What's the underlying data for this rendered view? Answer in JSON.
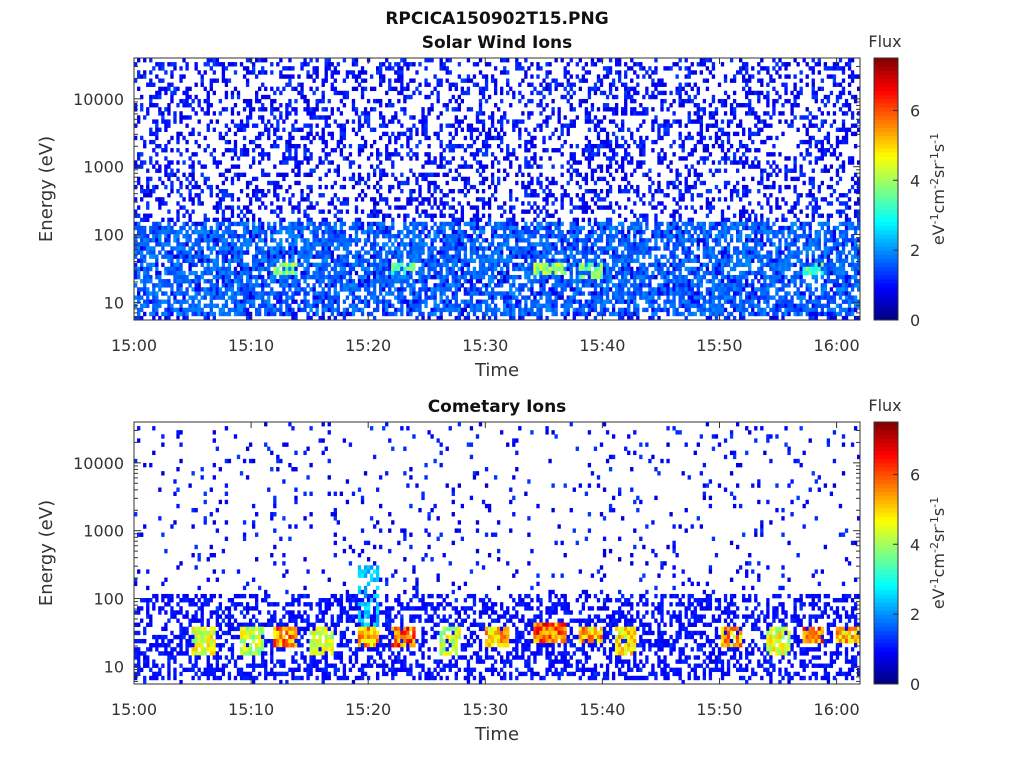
{
  "figure": {
    "title": "RPCICA150902T15.PNG"
  },
  "colorbar": {
    "label": "Flux",
    "unit_base": "eV",
    "unit_exp1": "-1",
    "unit_cm": "cm",
    "unit_exp2": "-2",
    "unit_sr": "sr",
    "unit_exp3": "-1",
    "unit_s": "s",
    "unit_exp4": "-1",
    "ticks": [
      "0",
      "2",
      "4",
      "6"
    ],
    "range": [
      0,
      7.5
    ],
    "colormap": "jet"
  },
  "chart_data": [
    {
      "type": "heatmap",
      "title": "Solar Wind Ions",
      "xlabel": "Time",
      "ylabel": "Energy (eV)",
      "x_ticks": [
        "15:00",
        "15:10",
        "15:20",
        "15:30",
        "15:40",
        "15:50",
        "16:00"
      ],
      "x_range_minutes": [
        0,
        62
      ],
      "y_ticks": [
        "10",
        "100",
        "1000",
        "10000"
      ],
      "y_scale": "log",
      "y_range": [
        5.5,
        40000
      ],
      "noise_density": 0.33,
      "bands": [
        {
          "min": 0,
          "max": 62,
          "e_lo": 6,
          "e_hi": 150,
          "flux": 2.0,
          "density": 0.55
        },
        {
          "min": 12,
          "max": 13,
          "e_lo": 25,
          "e_hi": 40,
          "flux": 4.4,
          "density": 0.7
        },
        {
          "min": 22,
          "max": 23,
          "e_lo": 25,
          "e_hi": 40,
          "flux": 4.2,
          "density": 0.7
        },
        {
          "min": 34,
          "max": 36,
          "e_lo": 25,
          "e_hi": 40,
          "flux": 4.8,
          "density": 0.8
        },
        {
          "min": 38,
          "max": 39,
          "e_lo": 22,
          "e_hi": 40,
          "flux": 4.3,
          "density": 0.7
        },
        {
          "min": 57,
          "max": 58,
          "e_lo": 25,
          "e_hi": 40,
          "flux": 4.0,
          "density": 0.7
        }
      ]
    },
    {
      "type": "heatmap",
      "title": "Cometary Ions",
      "xlabel": "Time",
      "ylabel": "Energy (eV)",
      "x_ticks": [
        "15:00",
        "15:10",
        "15:20",
        "15:30",
        "15:40",
        "15:50",
        "16:00"
      ],
      "x_range_minutes": [
        0,
        62
      ],
      "y_ticks": [
        "10",
        "100",
        "1000",
        "10000"
      ],
      "y_scale": "log",
      "y_range": [
        5.5,
        40000
      ],
      "noise_density": 0.06,
      "bands": [
        {
          "min": 0,
          "max": 62,
          "e_lo": 6,
          "e_hi": 120,
          "flux": 1.2,
          "density": 0.4
        },
        {
          "min": 5,
          "max": 6,
          "e_lo": 14,
          "e_hi": 40,
          "flux": 5.2,
          "density": 0.85
        },
        {
          "min": 9,
          "max": 10,
          "e_lo": 14,
          "e_hi": 40,
          "flux": 5.0,
          "density": 0.8
        },
        {
          "min": 12,
          "max": 13,
          "e_lo": 20,
          "e_hi": 40,
          "flux": 6.5,
          "density": 0.9
        },
        {
          "min": 15,
          "max": 16,
          "e_lo": 14,
          "e_hi": 40,
          "flux": 5.0,
          "density": 0.8
        },
        {
          "min": 19,
          "max": 20,
          "e_lo": 20,
          "e_hi": 40,
          "flux": 6.3,
          "density": 0.85
        },
        {
          "min": 22,
          "max": 23,
          "e_lo": 18,
          "e_hi": 40,
          "flux": 6.8,
          "density": 0.9
        },
        {
          "min": 26,
          "max": 27,
          "e_lo": 14,
          "e_hi": 40,
          "flux": 5.0,
          "density": 0.8
        },
        {
          "min": 30,
          "max": 31,
          "e_lo": 20,
          "e_hi": 40,
          "flux": 6.0,
          "density": 0.85
        },
        {
          "min": 34,
          "max": 36,
          "e_lo": 22,
          "e_hi": 45,
          "flux": 6.9,
          "density": 0.95
        },
        {
          "min": 38,
          "max": 39,
          "e_lo": 22,
          "e_hi": 40,
          "flux": 6.2,
          "density": 0.9
        },
        {
          "min": 41,
          "max": 42,
          "e_lo": 14,
          "e_hi": 40,
          "flux": 5.6,
          "density": 0.85
        },
        {
          "min": 50,
          "max": 51,
          "e_lo": 18,
          "e_hi": 40,
          "flux": 6.2,
          "density": 0.85
        },
        {
          "min": 54,
          "max": 55,
          "e_lo": 14,
          "e_hi": 40,
          "flux": 5.2,
          "density": 0.8
        },
        {
          "min": 57,
          "max": 58,
          "e_lo": 22,
          "e_hi": 40,
          "flux": 6.8,
          "density": 0.9
        },
        {
          "min": 60,
          "max": 61,
          "e_lo": 22,
          "e_hi": 40,
          "flux": 6.0,
          "density": 0.85
        },
        {
          "min": 19,
          "max": 20,
          "e_lo": 40,
          "e_hi": 300,
          "flux": 2.8,
          "density": 0.6
        }
      ]
    }
  ]
}
